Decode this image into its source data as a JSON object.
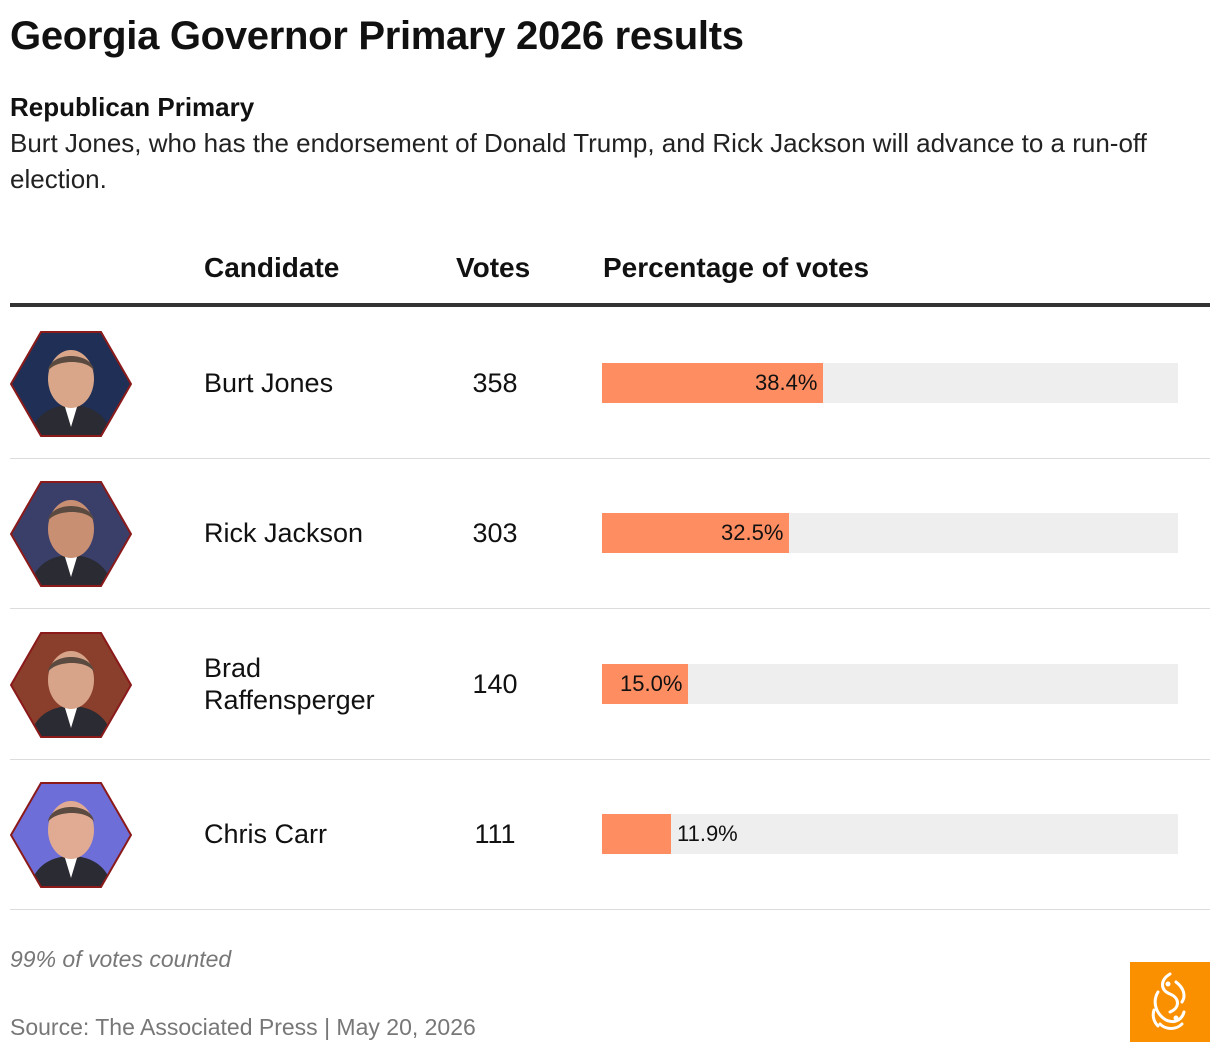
{
  "title": "Georgia Governor Primary 2026 results",
  "subtitle": "Republican Primary",
  "description": "Burt Jones, who has the endorsement of Donald Trump, and Rick Jackson will advance to a run-off election.",
  "columns": {
    "candidate": "Candidate",
    "votes": "Votes",
    "percentage": "Percentage of votes"
  },
  "footnote": "99% of votes counted",
  "source": "Source: The Associated Press | May 20, 2026",
  "colors": {
    "bar": "#fe8e62",
    "track": "#eeeeee",
    "avatar_border": "#8b1a1a",
    "logo": "#fa9000"
  },
  "icons": {
    "avatar": "candidate-photo",
    "logo": "al-jazeera-logo"
  },
  "chart_data": {
    "type": "bar",
    "orientation": "horizontal",
    "categories": [
      "Burt Jones",
      "Rick Jackson",
      "Brad Raffensperger",
      "Chris Carr"
    ],
    "votes": [
      358,
      303,
      140,
      111
    ],
    "values": [
      38.4,
      32.5,
      15.0,
      11.9
    ],
    "value_labels": [
      "38.4%",
      "32.5%",
      "15.0%",
      "11.9%"
    ],
    "xlim": [
      0,
      100
    ],
    "grid": false
  }
}
